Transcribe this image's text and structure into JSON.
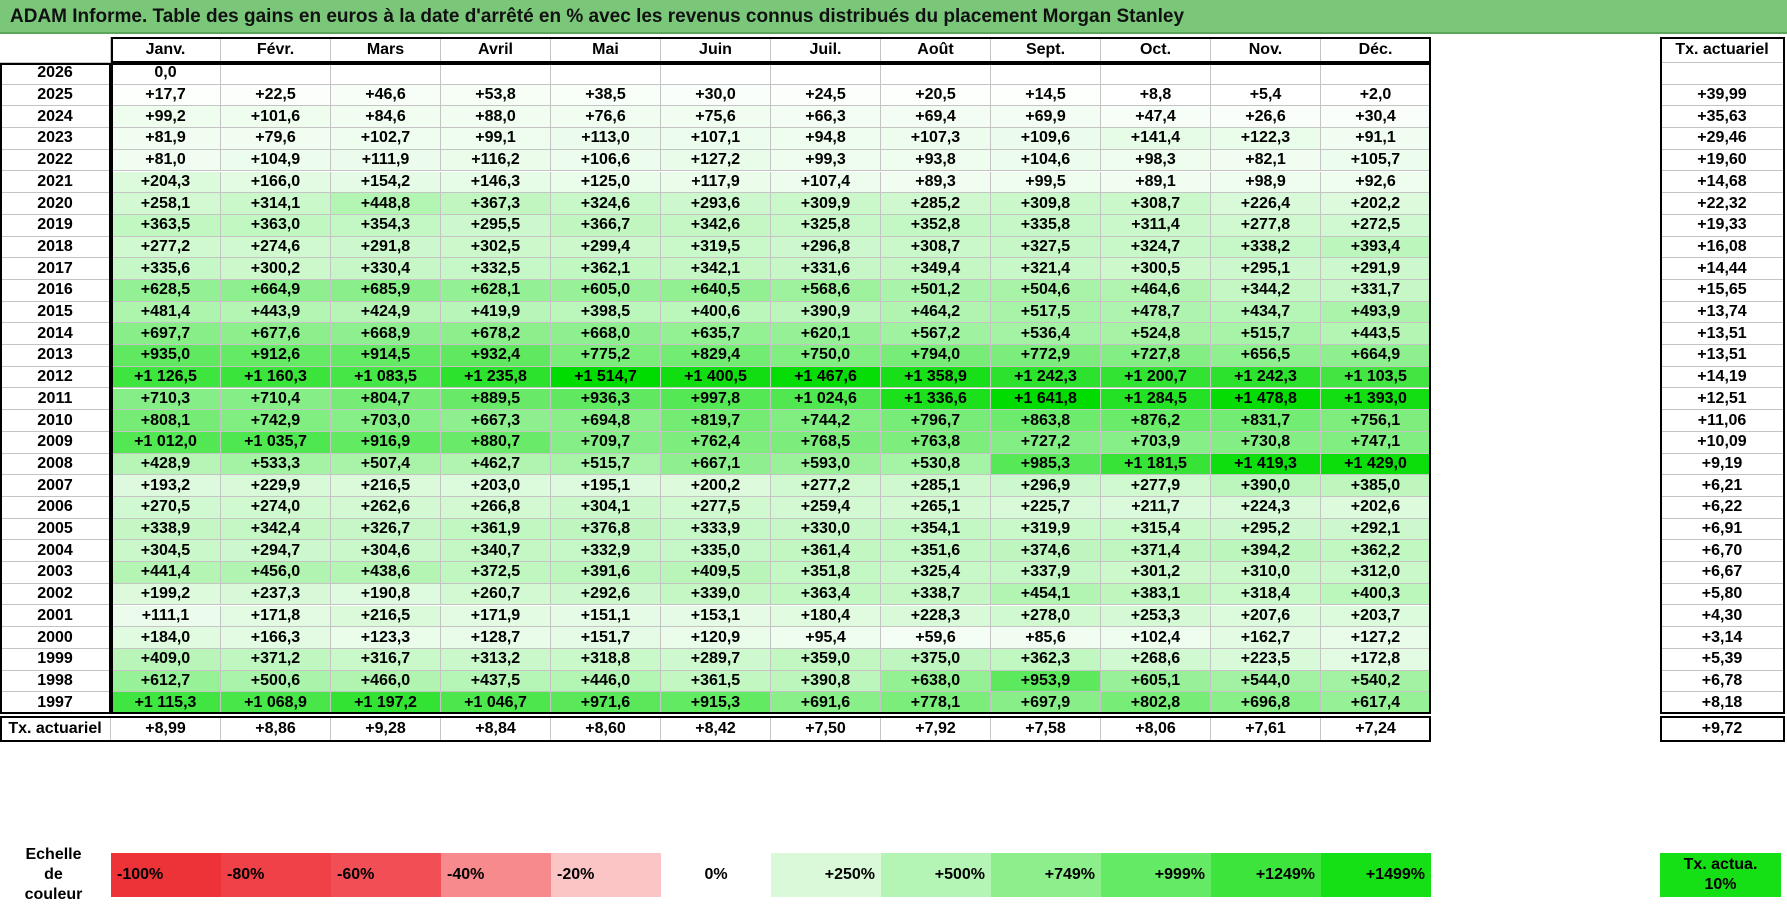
{
  "title": "ADAM Informe. Table des gains en euros à la date d'arrêté en % avec les revenus connus distribués du placement Morgan Stanley",
  "months": [
    "Janv.",
    "Févr.",
    "Mars",
    "Avril",
    "Mai",
    "Juin",
    "Juil.",
    "Août",
    "Sept.",
    "Oct.",
    "Nov.",
    "Déc."
  ],
  "actuarial_header": "Tx. actuariel",
  "rows": [
    {
      "year": "2026",
      "values": [
        "0,0",
        "",
        "",
        "",
        "",
        "",
        "",
        "",
        "",
        "",
        "",
        ""
      ],
      "rate": ""
    },
    {
      "year": "2025",
      "values": [
        "+17,7",
        "+22,5",
        "+46,6",
        "+53,8",
        "+38,5",
        "+30,0",
        "+24,5",
        "+20,5",
        "+14,5",
        "+8,8",
        "+5,4",
        "+2,0"
      ],
      "rate": "+39,99"
    },
    {
      "year": "2024",
      "values": [
        "+99,2",
        "+101,6",
        "+84,6",
        "+88,0",
        "+76,6",
        "+75,6",
        "+66,3",
        "+69,4",
        "+69,9",
        "+47,4",
        "+26,6",
        "+30,4"
      ],
      "rate": "+35,63"
    },
    {
      "year": "2023",
      "values": [
        "+81,9",
        "+79,6",
        "+102,7",
        "+99,1",
        "+113,0",
        "+107,1",
        "+94,8",
        "+107,3",
        "+109,6",
        "+141,4",
        "+122,3",
        "+91,1"
      ],
      "rate": "+29,46"
    },
    {
      "year": "2022",
      "values": [
        "+81,0",
        "+104,9",
        "+111,9",
        "+116,2",
        "+106,6",
        "+127,2",
        "+99,3",
        "+93,8",
        "+104,6",
        "+98,3",
        "+82,1",
        "+105,7"
      ],
      "rate": "+19,60"
    },
    {
      "year": "2021",
      "values": [
        "+204,3",
        "+166,0",
        "+154,2",
        "+146,3",
        "+125,0",
        "+117,9",
        "+107,4",
        "+89,3",
        "+99,5",
        "+89,1",
        "+98,9",
        "+92,6"
      ],
      "rate": "+14,68"
    },
    {
      "year": "2020",
      "values": [
        "+258,1",
        "+314,1",
        "+448,8",
        "+367,3",
        "+324,6",
        "+293,6",
        "+309,9",
        "+285,2",
        "+309,8",
        "+308,7",
        "+226,4",
        "+202,2"
      ],
      "rate": "+22,32"
    },
    {
      "year": "2019",
      "values": [
        "+363,5",
        "+363,0",
        "+354,3",
        "+295,5",
        "+366,7",
        "+342,6",
        "+325,8",
        "+352,8",
        "+335,8",
        "+311,4",
        "+277,8",
        "+272,5"
      ],
      "rate": "+19,33"
    },
    {
      "year": "2018",
      "values": [
        "+277,2",
        "+274,6",
        "+291,8",
        "+302,5",
        "+299,4",
        "+319,5",
        "+296,8",
        "+308,7",
        "+327,5",
        "+324,7",
        "+338,2",
        "+393,4"
      ],
      "rate": "+16,08"
    },
    {
      "year": "2017",
      "values": [
        "+335,6",
        "+300,2",
        "+330,4",
        "+332,5",
        "+362,1",
        "+342,1",
        "+331,6",
        "+349,4",
        "+321,4",
        "+300,5",
        "+295,1",
        "+291,9"
      ],
      "rate": "+14,44"
    },
    {
      "year": "2016",
      "values": [
        "+628,5",
        "+664,9",
        "+685,9",
        "+628,1",
        "+605,0",
        "+640,5",
        "+568,6",
        "+501,2",
        "+504,6",
        "+464,6",
        "+344,2",
        "+331,7"
      ],
      "rate": "+15,65"
    },
    {
      "year": "2015",
      "values": [
        "+481,4",
        "+443,9",
        "+424,9",
        "+419,9",
        "+398,5",
        "+400,6",
        "+390,9",
        "+464,2",
        "+517,5",
        "+478,7",
        "+434,7",
        "+493,9"
      ],
      "rate": "+13,74"
    },
    {
      "year": "2014",
      "values": [
        "+697,7",
        "+677,6",
        "+668,9",
        "+678,2",
        "+668,0",
        "+635,7",
        "+620,1",
        "+567,2",
        "+536,4",
        "+524,8",
        "+515,7",
        "+443,5"
      ],
      "rate": "+13,51"
    },
    {
      "year": "2013",
      "values": [
        "+935,0",
        "+912,6",
        "+914,5",
        "+932,4",
        "+775,2",
        "+829,4",
        "+750,0",
        "+794,0",
        "+772,9",
        "+727,8",
        "+656,5",
        "+664,9"
      ],
      "rate": "+13,51"
    },
    {
      "year": "2012",
      "values": [
        "+1 126,5",
        "+1 160,3",
        "+1 083,5",
        "+1 235,8",
        "+1 514,7",
        "+1 400,5",
        "+1 467,6",
        "+1 358,9",
        "+1 242,3",
        "+1 200,7",
        "+1 242,3",
        "+1 103,5"
      ],
      "rate": "+14,19"
    },
    {
      "year": "2011",
      "values": [
        "+710,3",
        "+710,4",
        "+804,7",
        "+889,5",
        "+936,3",
        "+997,8",
        "+1 024,6",
        "+1 336,6",
        "+1 641,8",
        "+1 284,5",
        "+1 478,8",
        "+1 393,0"
      ],
      "rate": "+12,51"
    },
    {
      "year": "2010",
      "values": [
        "+808,1",
        "+742,9",
        "+703,0",
        "+667,3",
        "+694,8",
        "+819,7",
        "+744,2",
        "+796,7",
        "+863,8",
        "+876,2",
        "+831,7",
        "+756,1"
      ],
      "rate": "+11,06"
    },
    {
      "year": "2009",
      "values": [
        "+1 012,0",
        "+1 035,7",
        "+916,9",
        "+880,7",
        "+709,7",
        "+762,4",
        "+768,5",
        "+763,8",
        "+727,2",
        "+703,9",
        "+730,8",
        "+747,1"
      ],
      "rate": "+10,09"
    },
    {
      "year": "2008",
      "values": [
        "+428,9",
        "+533,3",
        "+507,4",
        "+462,7",
        "+515,7",
        "+667,1",
        "+593,0",
        "+530,8",
        "+985,3",
        "+1 181,5",
        "+1 419,3",
        "+1 429,0"
      ],
      "rate": "+9,19"
    },
    {
      "year": "2007",
      "values": [
        "+193,2",
        "+229,9",
        "+216,5",
        "+203,0",
        "+195,1",
        "+200,2",
        "+277,2",
        "+285,1",
        "+296,9",
        "+277,9",
        "+390,0",
        "+385,0"
      ],
      "rate": "+6,21"
    },
    {
      "year": "2006",
      "values": [
        "+270,5",
        "+274,0",
        "+262,6",
        "+266,8",
        "+304,1",
        "+277,5",
        "+259,4",
        "+265,1",
        "+225,7",
        "+211,7",
        "+224,3",
        "+202,6"
      ],
      "rate": "+6,22"
    },
    {
      "year": "2005",
      "values": [
        "+338,9",
        "+342,4",
        "+326,7",
        "+361,9",
        "+376,8",
        "+333,9",
        "+330,0",
        "+354,1",
        "+319,9",
        "+315,4",
        "+295,2",
        "+292,1"
      ],
      "rate": "+6,91"
    },
    {
      "year": "2004",
      "values": [
        "+304,5",
        "+294,7",
        "+304,6",
        "+340,7",
        "+332,9",
        "+335,0",
        "+361,4",
        "+351,6",
        "+374,6",
        "+371,4",
        "+394,2",
        "+362,2"
      ],
      "rate": "+6,70"
    },
    {
      "year": "2003",
      "values": [
        "+441,4",
        "+456,0",
        "+438,6",
        "+372,5",
        "+391,6",
        "+409,5",
        "+351,8",
        "+325,4",
        "+337,9",
        "+301,2",
        "+310,0",
        "+312,0"
      ],
      "rate": "+6,67"
    },
    {
      "year": "2002",
      "values": [
        "+199,2",
        "+237,3",
        "+190,8",
        "+260,7",
        "+292,6",
        "+339,0",
        "+363,4",
        "+338,7",
        "+454,1",
        "+383,1",
        "+318,4",
        "+400,3"
      ],
      "rate": "+5,80"
    },
    {
      "year": "2001",
      "values": [
        "+111,1",
        "+171,8",
        "+216,5",
        "+171,9",
        "+151,1",
        "+153,1",
        "+180,4",
        "+228,3",
        "+278,0",
        "+253,3",
        "+207,6",
        "+203,7"
      ],
      "rate": "+4,30"
    },
    {
      "year": "2000",
      "values": [
        "+184,0",
        "+166,3",
        "+123,3",
        "+128,7",
        "+151,7",
        "+120,9",
        "+95,4",
        "+59,6",
        "+85,6",
        "+102,4",
        "+162,7",
        "+127,2"
      ],
      "rate": "+3,14"
    },
    {
      "year": "1999",
      "values": [
        "+409,0",
        "+371,2",
        "+316,7",
        "+313,2",
        "+318,8",
        "+289,7",
        "+359,0",
        "+375,0",
        "+362,3",
        "+268,6",
        "+223,5",
        "+172,8"
      ],
      "rate": "+5,39"
    },
    {
      "year": "1998",
      "values": [
        "+612,7",
        "+500,6",
        "+466,0",
        "+437,5",
        "+446,0",
        "+361,5",
        "+390,8",
        "+638,0",
        "+953,9",
        "+605,1",
        "+544,0",
        "+540,2"
      ],
      "rate": "+6,78"
    },
    {
      "year": "1997",
      "values": [
        "+1 115,3",
        "+1 068,9",
        "+1 197,2",
        "+1 046,7",
        "+971,6",
        "+915,3",
        "+691,6",
        "+778,1",
        "+697,9",
        "+802,8",
        "+696,8",
        "+617,4"
      ],
      "rate": "+8,18"
    }
  ],
  "footer": {
    "label": "Tx. actuariel",
    "values": [
      "+8,99",
      "+8,86",
      "+9,28",
      "+8,84",
      "+8,60",
      "+8,42",
      "+7,50",
      "+7,92",
      "+7,58",
      "+8,06",
      "+7,61",
      "+7,24"
    ],
    "rate": "+9,72"
  },
  "legend": {
    "label": "Echelle de couleur",
    "items": [
      {
        "text": "-100%",
        "color": "#ee3338"
      },
      {
        "text": "-80%",
        "color": "#f04048"
      },
      {
        "text": "-60%",
        "color": "#f24e55"
      },
      {
        "text": "-40%",
        "color": "#f78a8d"
      },
      {
        "text": "-20%",
        "color": "#fbc5c6"
      },
      {
        "text": "0%",
        "color": "#ffffff"
      },
      {
        "text": "+250%",
        "color": "#d9f9d9"
      },
      {
        "text": "+500%",
        "color": "#b4f4b4"
      },
      {
        "text": "+749%",
        "color": "#8cef8c"
      },
      {
        "text": "+999%",
        "color": "#64ea64"
      },
      {
        "text": "+1249%",
        "color": "#3ce43c"
      },
      {
        "text": "+1499%",
        "color": "#15df15"
      }
    ],
    "actuarial_swatch": {
      "text": "Tx. actua. 10%",
      "color": "#15df15"
    }
  },
  "colors": {
    "title_bar": "#7ac77a",
    "scale_zero": "#ffffff",
    "scale_max": "#00dc00"
  }
}
